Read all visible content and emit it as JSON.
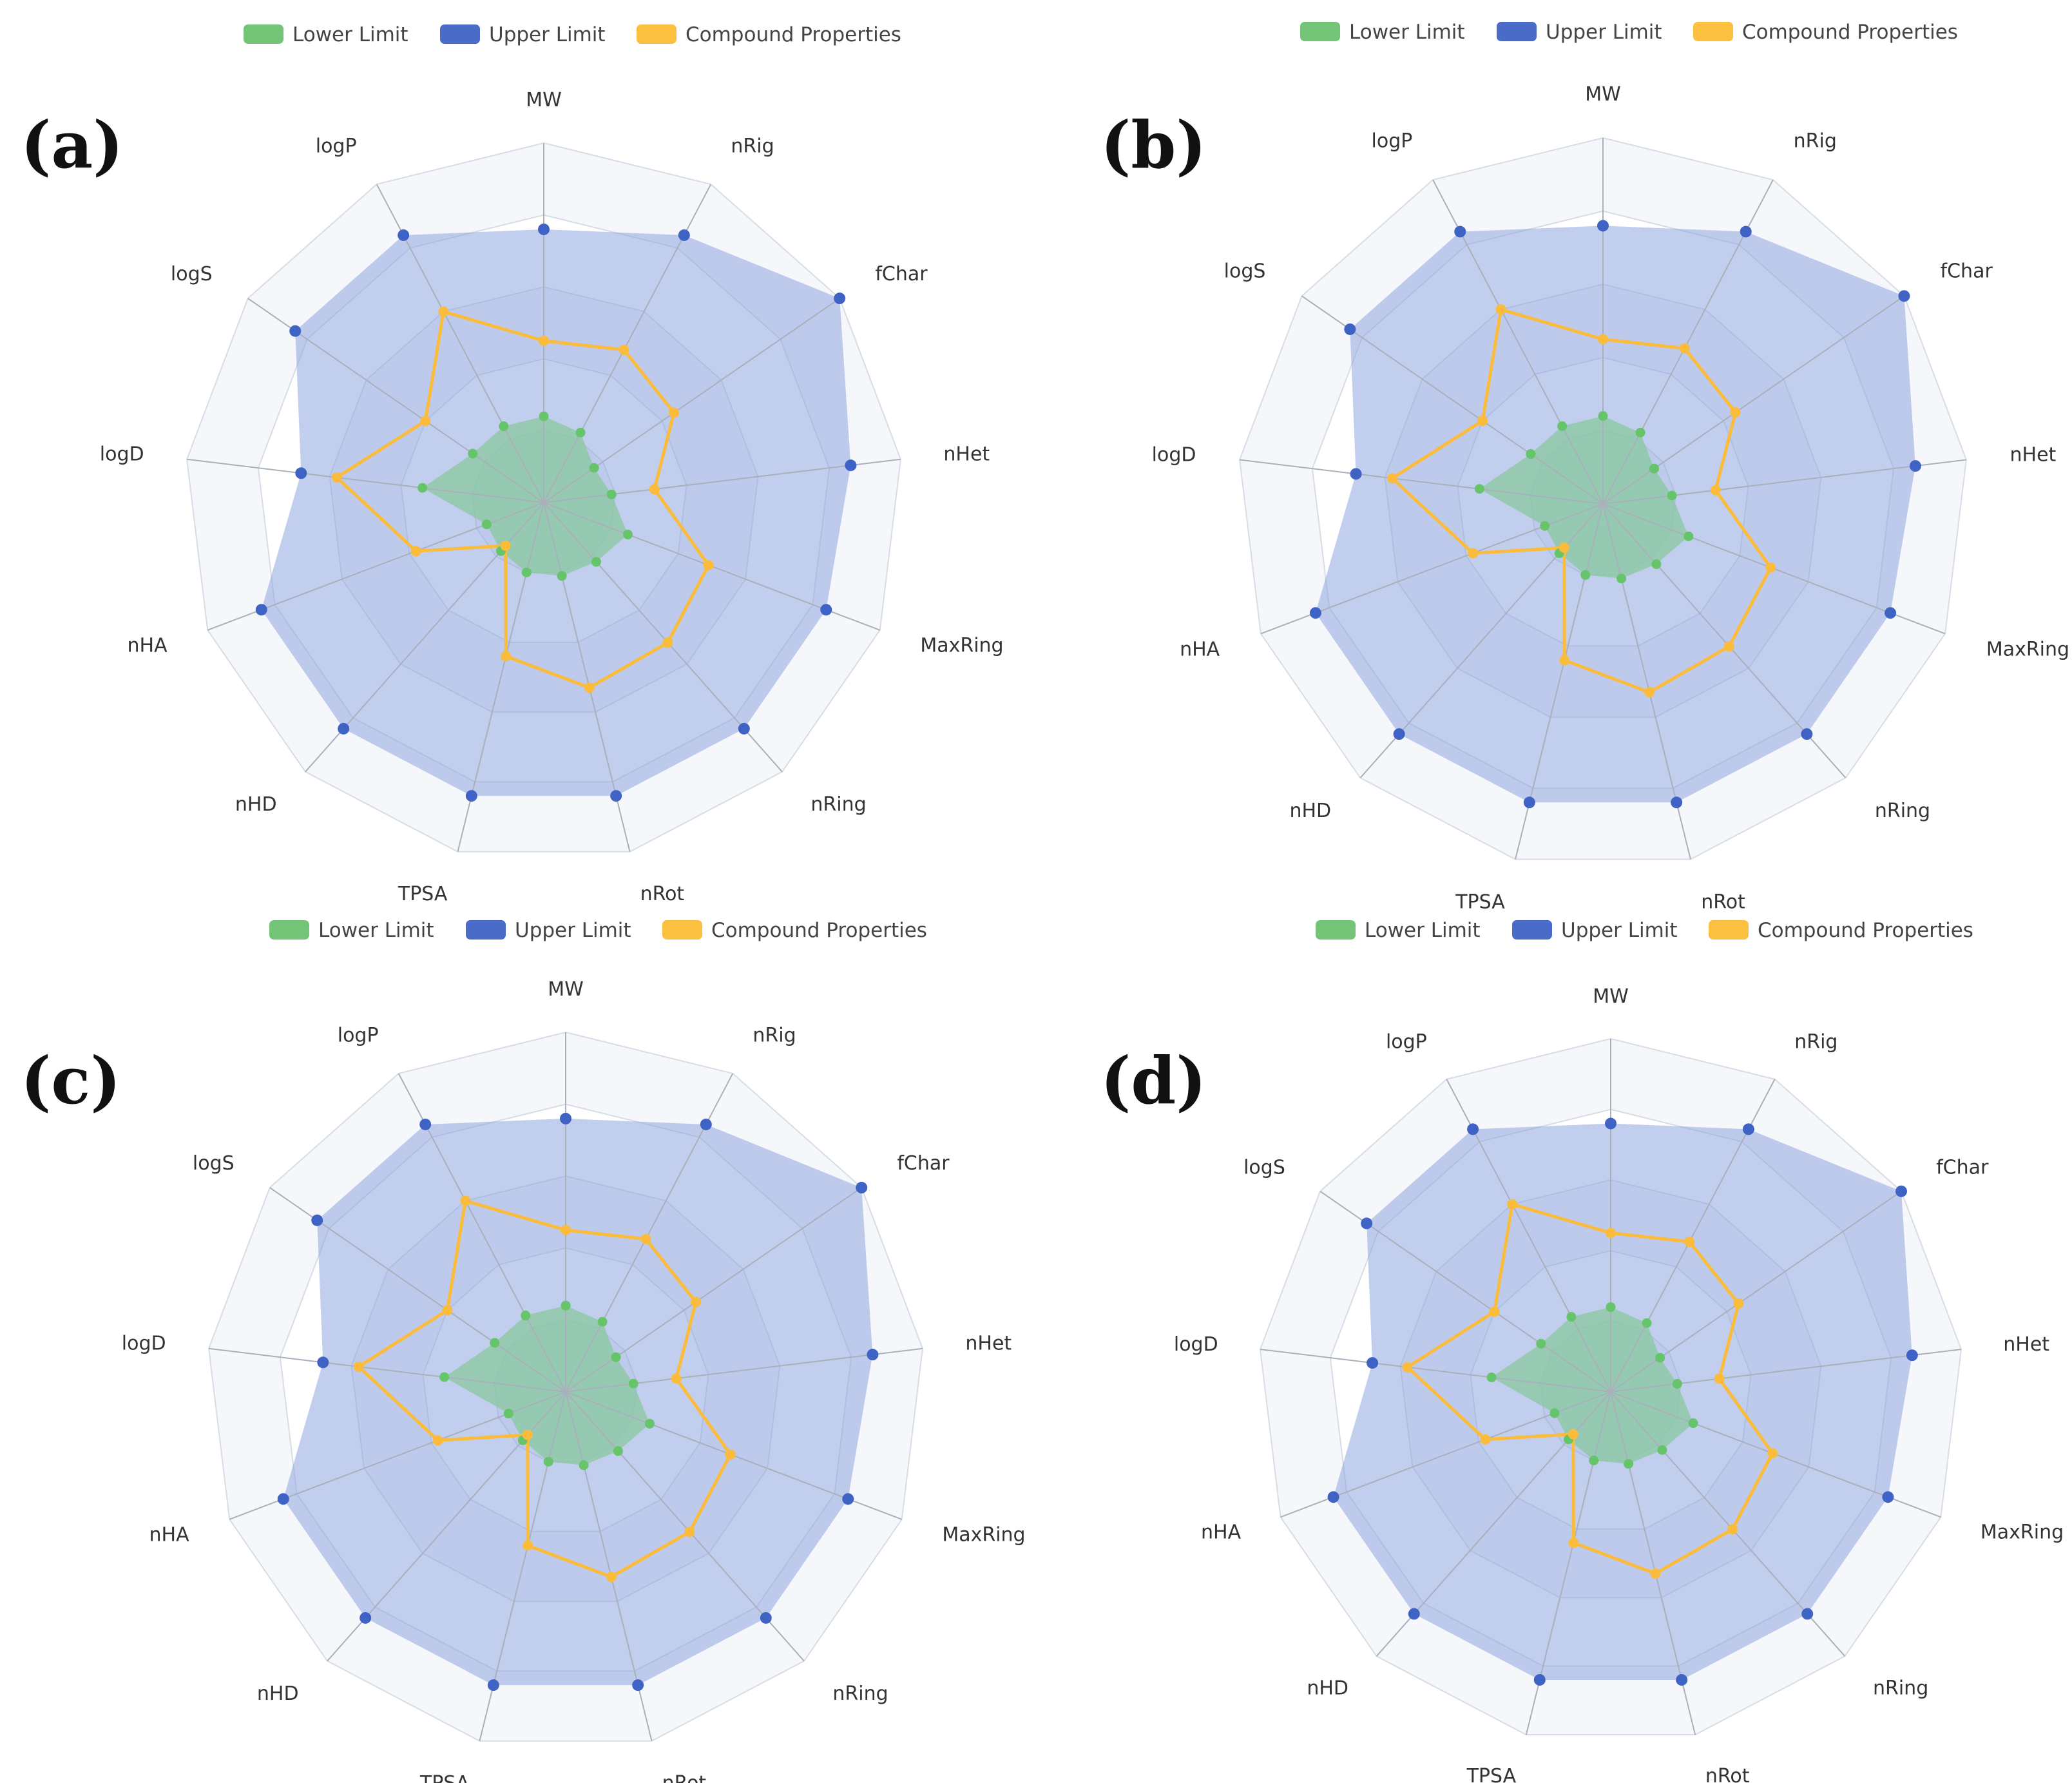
{
  "figure": {
    "legend": [
      {
        "key": "lower",
        "label": "Lower Limit",
        "color": "#73c476"
      },
      {
        "key": "upper",
        "label": "Upper Limit",
        "color": "#4a6cc8"
      },
      {
        "key": "compound",
        "label": "Compound Properties",
        "color": "#fcc040"
      }
    ],
    "colors": {
      "upper_fill": "#8ea6de",
      "upper_dot": "#3f63c4",
      "lower_fill": "#86c99a",
      "lower_dot": "#66c46a",
      "compound_line": "#fbbc3c",
      "grid_line": "#d7dde4",
      "spoke": "#a9b0bc",
      "band": "#f5f7fa"
    }
  },
  "chart_data": [
    {
      "panel": "(a)",
      "type": "radar",
      "axes": [
        "MW",
        "nRig",
        "fChar",
        "nHet",
        "MaxRing",
        "nRing",
        "nRot",
        "TPSA",
        "nHD",
        "nHA",
        "logD",
        "logS",
        "logP"
      ],
      "range": [
        0,
        1
      ],
      "series": [
        {
          "name": "Upper Limit",
          "values": [
            0.76,
            0.84,
            1.0,
            0.86,
            0.84,
            0.84,
            0.84,
            0.84,
            0.84,
            0.84,
            0.68,
            0.84,
            0.84
          ]
        },
        {
          "name": "Lower Limit",
          "values": [
            0.24,
            0.22,
            0.17,
            0.19,
            0.25,
            0.22,
            0.21,
            0.2,
            0.18,
            0.17,
            0.34,
            0.24,
            0.24
          ]
        },
        {
          "name": "Compound Properties",
          "values": [
            0.45,
            0.48,
            0.44,
            0.31,
            0.49,
            0.52,
            0.53,
            0.44,
            0.16,
            0.38,
            0.58,
            0.4,
            0.6
          ]
        }
      ]
    },
    {
      "panel": "(b)",
      "type": "radar",
      "axes": [
        "MW",
        "nRig",
        "fChar",
        "nHet",
        "MaxRing",
        "nRing",
        "nRot",
        "TPSA",
        "nHD",
        "nHA",
        "logD",
        "logS",
        "logP"
      ],
      "range": [
        0,
        1
      ],
      "series": [
        {
          "name": "Upper Limit",
          "values": [
            0.76,
            0.84,
            1.0,
            0.86,
            0.84,
            0.84,
            0.84,
            0.84,
            0.84,
            0.84,
            0.68,
            0.84,
            0.84
          ]
        },
        {
          "name": "Lower Limit",
          "values": [
            0.24,
            0.22,
            0.17,
            0.19,
            0.25,
            0.22,
            0.21,
            0.2,
            0.18,
            0.17,
            0.34,
            0.24,
            0.24
          ]
        },
        {
          "name": "Compound Properties",
          "values": [
            0.45,
            0.48,
            0.44,
            0.31,
            0.49,
            0.52,
            0.53,
            0.44,
            0.16,
            0.38,
            0.58,
            0.4,
            0.6
          ]
        }
      ]
    },
    {
      "panel": "(c)",
      "type": "radar",
      "axes": [
        "MW",
        "nRig",
        "fChar",
        "nHet",
        "MaxRing",
        "nRing",
        "nRot",
        "TPSA",
        "nHD",
        "nHA",
        "logD",
        "logS",
        "logP"
      ],
      "range": [
        0,
        1
      ],
      "series": [
        {
          "name": "Upper Limit",
          "values": [
            0.76,
            0.84,
            1.0,
            0.86,
            0.84,
            0.84,
            0.84,
            0.84,
            0.84,
            0.84,
            0.68,
            0.84,
            0.84
          ]
        },
        {
          "name": "Lower Limit",
          "values": [
            0.24,
            0.22,
            0.17,
            0.19,
            0.25,
            0.22,
            0.21,
            0.2,
            0.18,
            0.17,
            0.34,
            0.24,
            0.24
          ]
        },
        {
          "name": "Compound Properties",
          "values": [
            0.45,
            0.48,
            0.44,
            0.31,
            0.49,
            0.52,
            0.53,
            0.44,
            0.16,
            0.38,
            0.58,
            0.4,
            0.6
          ]
        }
      ]
    },
    {
      "panel": "(d)",
      "type": "radar",
      "axes": [
        "MW",
        "nRig",
        "fChar",
        "nHet",
        "MaxRing",
        "nRing",
        "nRot",
        "TPSA",
        "nHD",
        "nHA",
        "logD",
        "logS",
        "logP"
      ],
      "range": [
        0,
        1
      ],
      "series": [
        {
          "name": "Upper Limit",
          "values": [
            0.76,
            0.84,
            1.0,
            0.86,
            0.84,
            0.84,
            0.84,
            0.84,
            0.84,
            0.84,
            0.68,
            0.84,
            0.84
          ]
        },
        {
          "name": "Lower Limit",
          "values": [
            0.24,
            0.22,
            0.17,
            0.19,
            0.25,
            0.22,
            0.21,
            0.2,
            0.18,
            0.17,
            0.34,
            0.24,
            0.24
          ]
        },
        {
          "name": "Compound Properties",
          "values": [
            0.45,
            0.48,
            0.44,
            0.31,
            0.49,
            0.52,
            0.53,
            0.44,
            0.16,
            0.38,
            0.58,
            0.4,
            0.6
          ]
        }
      ]
    }
  ]
}
